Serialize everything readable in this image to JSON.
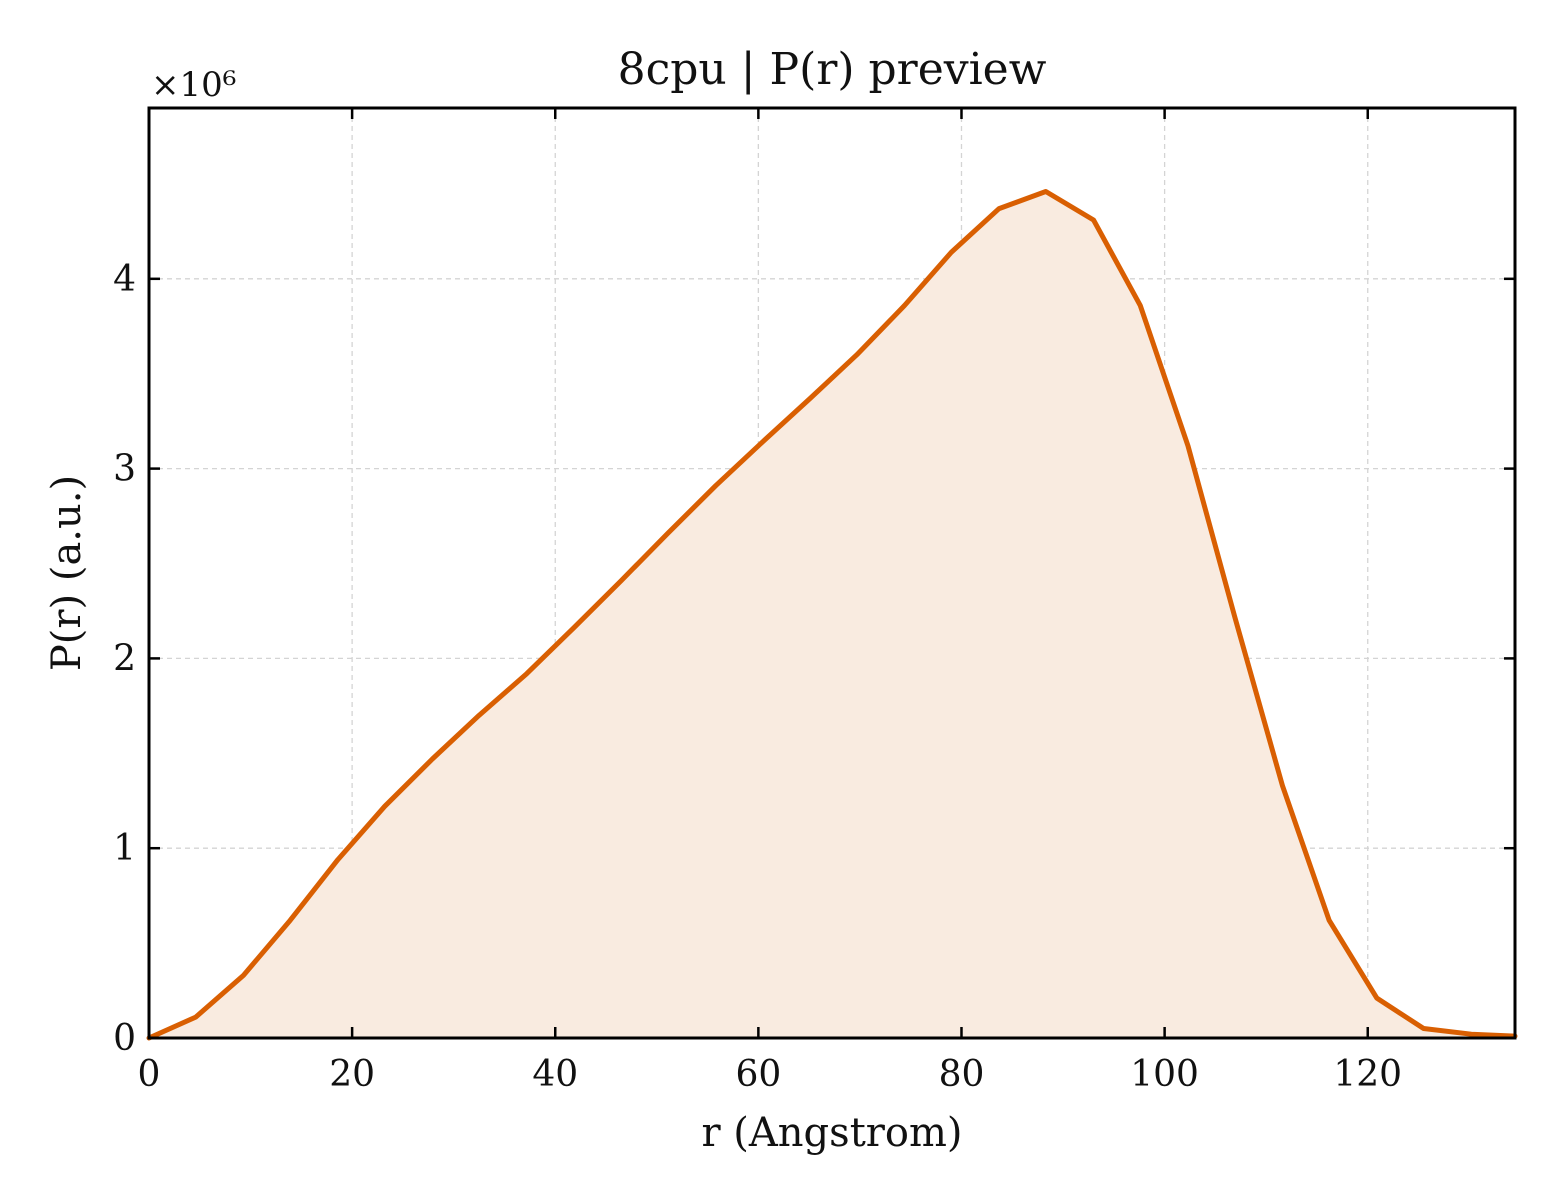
{
  "chart_data": {
    "type": "area",
    "title": "8cpu | P(r) preview",
    "xlabel": "r (Angstrom)",
    "ylabel": "P(r) (a.u.)",
    "y_scale_label": "×10⁶",
    "xlim": [
      0,
      134.5
    ],
    "ylim": [
      0,
      4.9
    ],
    "x_ticks": [
      0,
      20,
      40,
      60,
      80,
      100,
      120
    ],
    "y_ticks": [
      0,
      1,
      2,
      3,
      4
    ],
    "x_tick_labels": [
      "0",
      "20",
      "40",
      "60",
      "80",
      "100",
      "120"
    ],
    "y_tick_labels": [
      "0",
      "1",
      "2",
      "3",
      "4"
    ],
    "grid": true,
    "legend": false,
    "series": [
      {
        "color": "#d95f02",
        "fill_color": "#f9ebe0",
        "x": [
          0,
          4.6,
          9.3,
          13.9,
          18.6,
          23.2,
          27.9,
          32.5,
          37.2,
          41.8,
          46.5,
          51.1,
          55.8,
          60.4,
          65.1,
          69.7,
          74.4,
          79.0,
          83.7,
          88.3,
          93.0,
          97.6,
          102.3,
          106.9,
          111.6,
          116.2,
          120.9,
          125.5,
          130.2,
          134.5
        ],
        "y": [
          0.0,
          0.11,
          0.33,
          0.62,
          0.94,
          1.22,
          1.47,
          1.7,
          1.92,
          2.16,
          2.41,
          2.66,
          2.91,
          3.14,
          3.37,
          3.6,
          3.86,
          4.14,
          4.37,
          4.46,
          4.31,
          3.86,
          3.12,
          2.22,
          1.33,
          0.62,
          0.21,
          0.05,
          0.02,
          0.01
        ]
      }
    ]
  }
}
